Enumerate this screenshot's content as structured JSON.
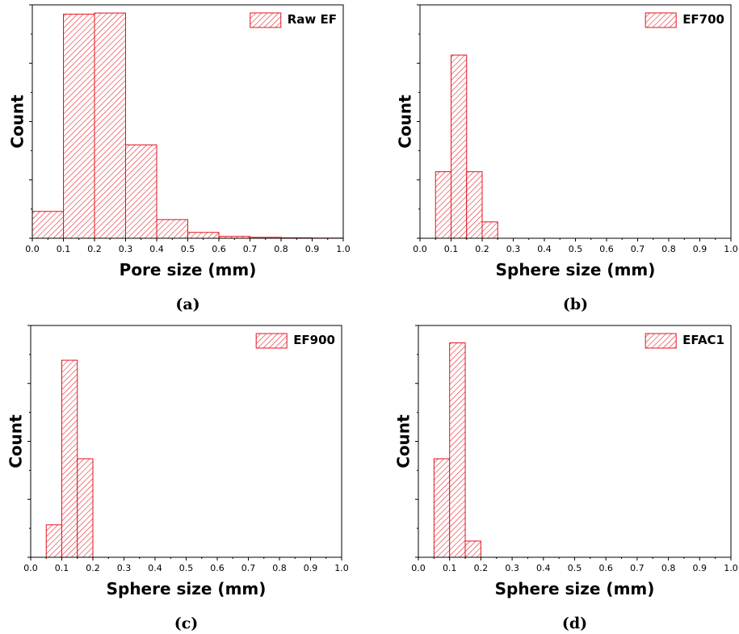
{
  "colors": {
    "bar_edge": "#e0141e",
    "axis": "#000000",
    "background": "#ffffff"
  },
  "chart_data": [
    {
      "type": "bar",
      "panel_label": "(a)",
      "xlabel": "Pore size (mm)",
      "ylabel": "Count",
      "xlim": [
        0.0,
        1.0
      ],
      "xticks": [
        "0.0",
        "0.1",
        "0.2",
        "0.3",
        "0.4",
        "0.5",
        "0.6",
        "0.7",
        "0.8",
        "0.9",
        "1.0"
      ],
      "ylim": [
        0,
        100
      ],
      "y_tick_labels_shown": false,
      "legend": {
        "label": "Raw EF",
        "placement": "top-right"
      },
      "bins": [
        {
          "start": 0.0,
          "end": 0.1,
          "value": 11.5
        },
        {
          "start": 0.1,
          "end": 0.2,
          "value": 96.0
        },
        {
          "start": 0.2,
          "end": 0.3,
          "value": 96.5
        },
        {
          "start": 0.3,
          "end": 0.4,
          "value": 40.0
        },
        {
          "start": 0.4,
          "end": 0.5,
          "value": 8.0
        },
        {
          "start": 0.5,
          "end": 0.6,
          "value": 2.5
        },
        {
          "start": 0.6,
          "end": 0.7,
          "value": 0.8
        },
        {
          "start": 0.7,
          "end": 0.8,
          "value": 0.4
        },
        {
          "start": 0.8,
          "end": 0.9,
          "value": 0.2
        },
        {
          "start": 0.9,
          "end": 1.0,
          "value": 0.1
        }
      ]
    },
    {
      "type": "bar",
      "panel_label": "(b)",
      "xlabel": "Sphere size (mm)",
      "ylabel": "Count",
      "xlim": [
        0.0,
        1.0
      ],
      "xticks": [
        "0.0",
        "0.1",
        "0.2",
        "0.3",
        "0.4",
        "0.5",
        "0.6",
        "0.7",
        "0.8",
        "0.9",
        "1.0"
      ],
      "ylim": [
        0,
        100
      ],
      "y_tick_labels_shown": false,
      "legend": {
        "label": "EF700",
        "placement": "top-right"
      },
      "bins": [
        {
          "start": 0.05,
          "end": 0.1,
          "value": 28.5
        },
        {
          "start": 0.1,
          "end": 0.15,
          "value": 78.5
        },
        {
          "start": 0.15,
          "end": 0.2,
          "value": 28.5
        },
        {
          "start": 0.2,
          "end": 0.25,
          "value": 7.0
        }
      ]
    },
    {
      "type": "bar",
      "panel_label": "(c)",
      "xlabel": "Sphere size (mm)",
      "ylabel": "Count",
      "xlim": [
        0.0,
        1.0
      ],
      "xticks": [
        "0.0",
        "0.1",
        "0.2",
        "0.3",
        "0.4",
        "0.5",
        "0.6",
        "0.7",
        "0.8",
        "0.9",
        "1.0"
      ],
      "ylim": [
        0,
        100
      ],
      "y_tick_labels_shown": false,
      "legend": {
        "label": "EF900",
        "placement": "top-right"
      },
      "bins": [
        {
          "start": 0.05,
          "end": 0.1,
          "value": 14.0
        },
        {
          "start": 0.1,
          "end": 0.15,
          "value": 85.0
        },
        {
          "start": 0.15,
          "end": 0.2,
          "value": 42.5
        }
      ]
    },
    {
      "type": "bar",
      "panel_label": "(d)",
      "xlabel": "Sphere size (mm)",
      "ylabel": "Count",
      "xlim": [
        0.0,
        1.0
      ],
      "xticks": [
        "0.0",
        "0.1",
        "0.2",
        "0.3",
        "0.4",
        "0.5",
        "0.6",
        "0.7",
        "0.8",
        "0.9",
        "1.0"
      ],
      "ylim": [
        0,
        100
      ],
      "y_tick_labels_shown": false,
      "legend": {
        "label": "EFAC1",
        "placement": "top-right"
      },
      "bins": [
        {
          "start": 0.05,
          "end": 0.1,
          "value": 42.5
        },
        {
          "start": 0.1,
          "end": 0.15,
          "value": 92.5
        },
        {
          "start": 0.15,
          "end": 0.2,
          "value": 7.0
        }
      ]
    }
  ]
}
